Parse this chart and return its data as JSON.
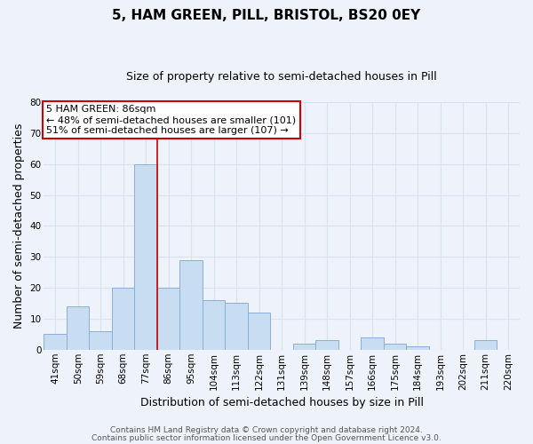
{
  "title": "5, HAM GREEN, PILL, BRISTOL, BS20 0EY",
  "subtitle": "Size of property relative to semi-detached houses in Pill",
  "xlabel": "Distribution of semi-detached houses by size in Pill",
  "ylabel": "Number of semi-detached properties",
  "bins": [
    "41sqm",
    "50sqm",
    "59sqm",
    "68sqm",
    "77sqm",
    "86sqm",
    "95sqm",
    "104sqm",
    "113sqm",
    "122sqm",
    "131sqm",
    "139sqm",
    "148sqm",
    "157sqm",
    "166sqm",
    "175sqm",
    "184sqm",
    "193sqm",
    "202sqm",
    "211sqm",
    "220sqm"
  ],
  "values": [
    5,
    14,
    6,
    20,
    60,
    20,
    29,
    16,
    15,
    12,
    0,
    2,
    3,
    0,
    4,
    2,
    1,
    0,
    0,
    3,
    0
  ],
  "bar_color": "#c9ddf2",
  "bar_edge_color": "#8aafd4",
  "vline_x": 4.5,
  "vline_color": "#cc0000",
  "annotation_text": "5 HAM GREEN: 86sqm\n← 48% of semi-detached houses are smaller (101)\n51% of semi-detached houses are larger (107) →",
  "annotation_box_facecolor": "#ffffff",
  "annotation_box_edgecolor": "#cc0000",
  "ylim": [
    0,
    80
  ],
  "yticks": [
    0,
    10,
    20,
    30,
    40,
    50,
    60,
    70,
    80
  ],
  "footer_line1": "Contains HM Land Registry data © Crown copyright and database right 2024.",
  "footer_line2": "Contains public sector information licensed under the Open Government Licence v3.0.",
  "background_color": "#eef2fa",
  "grid_color": "#d8e2f0",
  "title_fontsize": 11,
  "subtitle_fontsize": 9,
  "axis_label_fontsize": 9,
  "tick_fontsize": 7.5,
  "footer_fontsize": 6.5,
  "annotation_fontsize": 8
}
